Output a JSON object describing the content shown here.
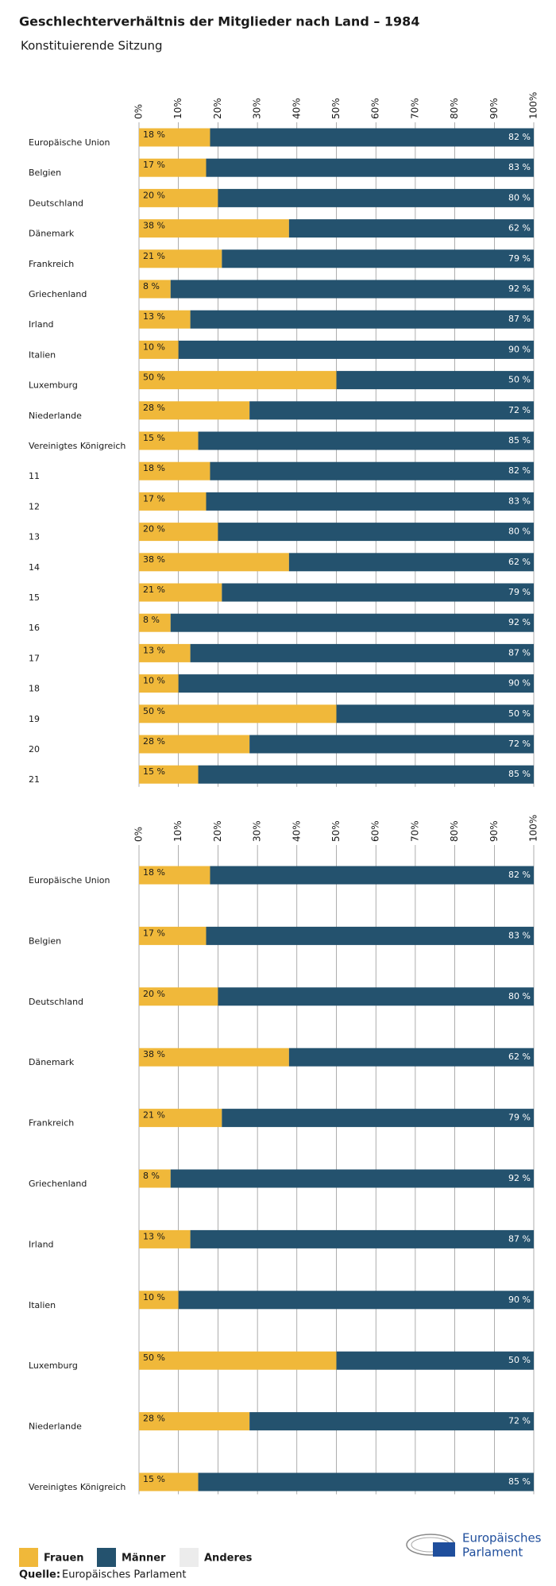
{
  "chart_data": [
    {
      "type": "stacked-bar-horizontal",
      "title": "Geschlechterverhältnis der Mitglieder nach Land – 1984",
      "subtitle": "Konstituierende Sitzung",
      "categories": [
        "Europäische Union",
        "Belgien",
        "Deutschland",
        "Dänemark",
        "Frankreich",
        "Griechenland",
        "Irland",
        "Italien",
        "Luxemburg",
        "Niederlande",
        "Vereinigtes Königreich",
        "11",
        "12",
        "13",
        "14",
        "15",
        "16",
        "17",
        "18",
        "19",
        "20",
        "21"
      ],
      "series": [
        {
          "name": "Frauen",
          "color": "#f0b83a",
          "values": [
            18,
            17,
            20,
            38,
            21,
            8,
            13,
            10,
            50,
            28,
            15,
            18,
            17,
            20,
            38,
            21,
            8,
            13,
            10,
            50,
            28,
            15
          ],
          "value_labels": [
            "18 %",
            "17 %",
            "20 %",
            "38 %",
            "21 %",
            "8 %",
            "13 %",
            "10 %",
            "50 %",
            "28 %",
            "15 %",
            "18 %",
            "17 %",
            "20 %",
            "38 %",
            "21 %",
            "8 %",
            "13 %",
            "10 %",
            "50 %",
            "28 %",
            "15 %"
          ]
        },
        {
          "name": "Männer",
          "color": "#24526e",
          "values": [
            82,
            83,
            80,
            62,
            79,
            92,
            87,
            90,
            50,
            72,
            85,
            82,
            83,
            80,
            62,
            79,
            92,
            87,
            90,
            50,
            72,
            85
          ],
          "value_labels": [
            "82 %",
            "83 %",
            "80 %",
            "62 %",
            "79 %",
            "92 %",
            "87 %",
            "90 %",
            "50 %",
            "72 %",
            "85 %",
            "82 %",
            "83 %",
            "80 %",
            "62 %",
            "79 %",
            "92 %",
            "87 %",
            "90 %",
            "50 %",
            "72 %",
            "85 %"
          ]
        },
        {
          "name": "Anderes",
          "color": "#ececec",
          "values": [
            0,
            0,
            0,
            0,
            0,
            0,
            0,
            0,
            0,
            0,
            0,
            0,
            0,
            0,
            0,
            0,
            0,
            0,
            0,
            0,
            0,
            0
          ]
        }
      ],
      "xlim": [
        0,
        100
      ],
      "xticks": [
        {
          "value": 0,
          "label": "0%"
        },
        {
          "value": 10,
          "label": "10%"
        },
        {
          "value": 20,
          "label": "20%"
        },
        {
          "value": 30,
          "label": "30%"
        },
        {
          "value": 40,
          "label": "40%"
        },
        {
          "value": 50,
          "label": "50%"
        },
        {
          "value": 60,
          "label": "60%"
        },
        {
          "value": 70,
          "label": "70%"
        },
        {
          "value": 80,
          "label": "80%"
        },
        {
          "value": 90,
          "label": "90%"
        },
        {
          "value": 100,
          "label": "100%"
        }
      ],
      "grid": true
    },
    {
      "type": "stacked-bar-horizontal",
      "categories": [
        "Europäische Union",
        "Belgien",
        "Deutschland",
        "Dänemark",
        "Frankreich",
        "Griechenland",
        "Irland",
        "Italien",
        "Luxemburg",
        "Niederlande",
        "Vereinigtes Königreich"
      ],
      "series": [
        {
          "name": "Frauen",
          "color": "#f0b83a",
          "values": [
            18,
            17,
            20,
            38,
            21,
            8,
            13,
            10,
            50,
            28,
            15
          ],
          "value_labels": [
            "18 %",
            "17 %",
            "20 %",
            "38 %",
            "21 %",
            "8 %",
            "13 %",
            "10 %",
            "50 %",
            "28 %",
            "15 %"
          ]
        },
        {
          "name": "Männer",
          "color": "#24526e",
          "values": [
            82,
            83,
            80,
            62,
            79,
            92,
            87,
            90,
            50,
            72,
            85
          ],
          "value_labels": [
            "82 %",
            "83 %",
            "80 %",
            "62 %",
            "79 %",
            "92 %",
            "87 %",
            "90 %",
            "50 %",
            "72 %",
            "85 %"
          ]
        },
        {
          "name": "Anderes",
          "color": "#ececec",
          "values": [
            0,
            0,
            0,
            0,
            0,
            0,
            0,
            0,
            0,
            0,
            0
          ]
        }
      ],
      "xlim": [
        0,
        100
      ],
      "xticks": [
        {
          "value": 0,
          "label": "0%"
        },
        {
          "value": 10,
          "label": "10%"
        },
        {
          "value": 20,
          "label": "20%"
        },
        {
          "value": 30,
          "label": "30%"
        },
        {
          "value": 40,
          "label": "40%"
        },
        {
          "value": 50,
          "label": "50%"
        },
        {
          "value": 60,
          "label": "60%"
        },
        {
          "value": 70,
          "label": "70%"
        },
        {
          "value": 80,
          "label": "80%"
        },
        {
          "value": 90,
          "label": "90%"
        },
        {
          "value": 100,
          "label": "100%"
        }
      ],
      "grid": true
    }
  ],
  "source_label": "Quelle:",
  "source": "Europäisches Parlament",
  "logo_text": [
    "Europäisches",
    "Parlament"
  ]
}
